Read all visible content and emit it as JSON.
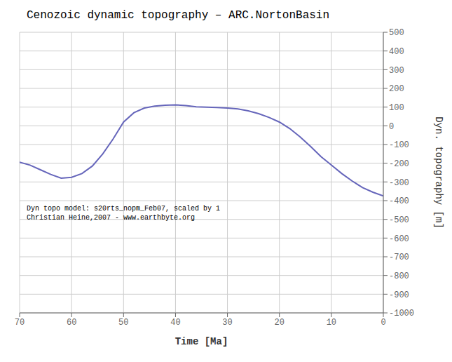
{
  "chart_data": {
    "type": "line",
    "title": "Cenozoic dynamic topography – ARC.NortonBasin",
    "xlabel": "Time [Ma]",
    "ylabel": "Dyn. topography [m]",
    "annotations": [
      "Dyn topo model: s20rts_nopm_Feb07, scaled by 1",
      "Christian Heine,2007 - www.earthbyte.org"
    ],
    "x": [
      70,
      68,
      66,
      64,
      62,
      60,
      58,
      56,
      54,
      52,
      50,
      48,
      46,
      44,
      42,
      40,
      38,
      36,
      34,
      32,
      30,
      28,
      26,
      24,
      22,
      20,
      18,
      16,
      14,
      12,
      10,
      8,
      6,
      4,
      2,
      0
    ],
    "values": [
      -195,
      -210,
      -235,
      -260,
      -280,
      -275,
      -255,
      -215,
      -150,
      -70,
      20,
      70,
      95,
      105,
      110,
      112,
      108,
      102,
      100,
      98,
      95,
      90,
      80,
      65,
      45,
      20,
      -15,
      -60,
      -110,
      -165,
      -210,
      -255,
      -295,
      -330,
      -355,
      -375
    ],
    "color": "#6666bb",
    "xlim": [
      70,
      0
    ],
    "ylim": [
      -1000,
      500
    ],
    "xticks": [
      70,
      60,
      50,
      40,
      30,
      20,
      10,
      0
    ],
    "yticks": [
      -1000,
      -900,
      -800,
      -700,
      -600,
      -500,
      -400,
      -300,
      -200,
      -100,
      0,
      100,
      200,
      300,
      400,
      500
    ],
    "grid": true
  }
}
